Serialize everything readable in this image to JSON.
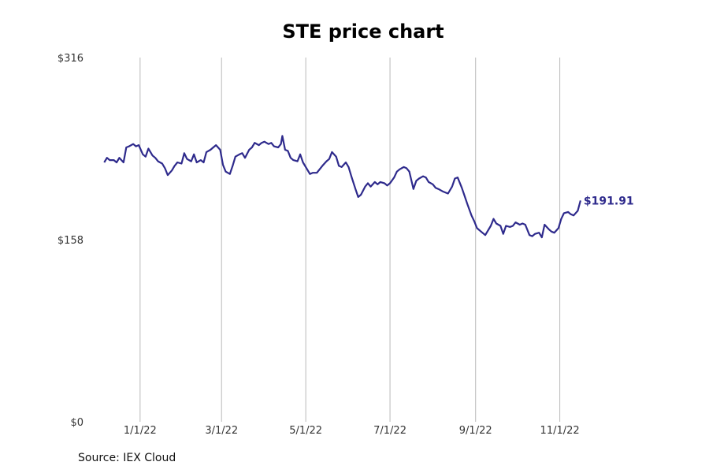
{
  "title": "STE price chart",
  "source": "Source: IEX Cloud",
  "chart_data": {
    "type": "line",
    "title": "STE price chart",
    "xlabel": "",
    "ylabel": "",
    "ylim": [
      0,
      316
    ],
    "y_ticks": [
      {
        "value": 0,
        "label": "$0"
      },
      {
        "value": 158,
        "label": "$158"
      },
      {
        "value": 316,
        "label": "$316"
      }
    ],
    "x_ticks": [
      {
        "date": "2022-01-01",
        "label": "1/1/22"
      },
      {
        "date": "2022-03-01",
        "label": "3/1/22"
      },
      {
        "date": "2022-05-01",
        "label": "5/1/22"
      },
      {
        "date": "2022-07-01",
        "label": "7/1/22"
      },
      {
        "date": "2022-09-01",
        "label": "9/1/22"
      },
      {
        "date": "2022-11-01",
        "label": "11/1/22"
      }
    ],
    "x_range": [
      "2021-11-29",
      "2022-12-22"
    ],
    "grid": "vertical",
    "line_color": "#2e2a8c",
    "last_value_label": "$191.91",
    "series": [
      {
        "points": [
          [
            "2021-12-06",
            225
          ],
          [
            "2021-12-08",
            229
          ],
          [
            "2021-12-10",
            227
          ],
          [
            "2021-12-13",
            227
          ],
          [
            "2021-12-15",
            225
          ],
          [
            "2021-12-17",
            229
          ],
          [
            "2021-12-20",
            225
          ],
          [
            "2021-12-22",
            238
          ],
          [
            "2021-12-24",
            239
          ],
          [
            "2021-12-27",
            241
          ],
          [
            "2021-12-29",
            239
          ],
          [
            "2021-12-31",
            240
          ],
          [
            "2022-01-03",
            232
          ],
          [
            "2022-01-05",
            230
          ],
          [
            "2022-01-07",
            237
          ],
          [
            "2022-01-10",
            231
          ],
          [
            "2022-01-12",
            229
          ],
          [
            "2022-01-14",
            226
          ],
          [
            "2022-01-17",
            224
          ],
          [
            "2022-01-19",
            220
          ],
          [
            "2022-01-21",
            214
          ],
          [
            "2022-01-24",
            218
          ],
          [
            "2022-01-26",
            222
          ],
          [
            "2022-01-28",
            225
          ],
          [
            "2022-01-31",
            224
          ],
          [
            "2022-02-02",
            233
          ],
          [
            "2022-02-04",
            228
          ],
          [
            "2022-02-07",
            226
          ],
          [
            "2022-02-09",
            232
          ],
          [
            "2022-02-11",
            225
          ],
          [
            "2022-02-14",
            227
          ],
          [
            "2022-02-16",
            225
          ],
          [
            "2022-02-18",
            234
          ],
          [
            "2022-02-21",
            236
          ],
          [
            "2022-02-23",
            238
          ],
          [
            "2022-02-25",
            240
          ],
          [
            "2022-02-28",
            236
          ],
          [
            "2022-03-02",
            223
          ],
          [
            "2022-03-04",
            217
          ],
          [
            "2022-03-07",
            215
          ],
          [
            "2022-03-09",
            222
          ],
          [
            "2022-03-11",
            230
          ],
          [
            "2022-03-14",
            232
          ],
          [
            "2022-03-16",
            233
          ],
          [
            "2022-03-18",
            229
          ],
          [
            "2022-03-21",
            236
          ],
          [
            "2022-03-23",
            238
          ],
          [
            "2022-03-25",
            242
          ],
          [
            "2022-03-28",
            240
          ],
          [
            "2022-03-30",
            242
          ],
          [
            "2022-04-01",
            243
          ],
          [
            "2022-04-04",
            241
          ],
          [
            "2022-04-06",
            242
          ],
          [
            "2022-04-08",
            239
          ],
          [
            "2022-04-11",
            238
          ],
          [
            "2022-04-13",
            241
          ],
          [
            "2022-04-14",
            248
          ],
          [
            "2022-04-16",
            236
          ],
          [
            "2022-04-18",
            235
          ],
          [
            "2022-04-20",
            229
          ],
          [
            "2022-04-22",
            227
          ],
          [
            "2022-04-25",
            226
          ],
          [
            "2022-04-27",
            232
          ],
          [
            "2022-04-29",
            225
          ],
          [
            "2022-05-02",
            219
          ],
          [
            "2022-05-04",
            215
          ],
          [
            "2022-05-06",
            216
          ],
          [
            "2022-05-09",
            216
          ],
          [
            "2022-05-11",
            219
          ],
          [
            "2022-05-13",
            222
          ],
          [
            "2022-05-16",
            226
          ],
          [
            "2022-05-18",
            228
          ],
          [
            "2022-05-20",
            234
          ],
          [
            "2022-05-23",
            230
          ],
          [
            "2022-05-25",
            222
          ],
          [
            "2022-05-27",
            221
          ],
          [
            "2022-05-30",
            225
          ],
          [
            "2022-06-01",
            221
          ],
          [
            "2022-06-03",
            213
          ],
          [
            "2022-06-06",
            202
          ],
          [
            "2022-06-08",
            195
          ],
          [
            "2022-06-10",
            197
          ],
          [
            "2022-06-13",
            204
          ],
          [
            "2022-06-15",
            207
          ],
          [
            "2022-06-17",
            204
          ],
          [
            "2022-06-20",
            208
          ],
          [
            "2022-06-22",
            206
          ],
          [
            "2022-06-24",
            208
          ],
          [
            "2022-06-27",
            207
          ],
          [
            "2022-06-29",
            205
          ],
          [
            "2022-07-01",
            207
          ],
          [
            "2022-07-04",
            212
          ],
          [
            "2022-07-06",
            217
          ],
          [
            "2022-07-08",
            219
          ],
          [
            "2022-07-11",
            221
          ],
          [
            "2022-07-13",
            220
          ],
          [
            "2022-07-15",
            217
          ],
          [
            "2022-07-18",
            202
          ],
          [
            "2022-07-20",
            209
          ],
          [
            "2022-07-22",
            211
          ],
          [
            "2022-07-25",
            213
          ],
          [
            "2022-07-27",
            212
          ],
          [
            "2022-07-29",
            208
          ],
          [
            "2022-08-01",
            206
          ],
          [
            "2022-08-03",
            203
          ],
          [
            "2022-08-05",
            202
          ],
          [
            "2022-08-08",
            200
          ],
          [
            "2022-08-10",
            199
          ],
          [
            "2022-08-12",
            198
          ],
          [
            "2022-08-15",
            204
          ],
          [
            "2022-08-17",
            211
          ],
          [
            "2022-08-19",
            212
          ],
          [
            "2022-08-22",
            203
          ],
          [
            "2022-08-24",
            196
          ],
          [
            "2022-08-26",
            189
          ],
          [
            "2022-08-29",
            179
          ],
          [
            "2022-08-31",
            174
          ],
          [
            "2022-09-02",
            168
          ],
          [
            "2022-09-05",
            165
          ],
          [
            "2022-09-08",
            162
          ],
          [
            "2022-09-12",
            170
          ],
          [
            "2022-09-14",
            176
          ],
          [
            "2022-09-16",
            172
          ],
          [
            "2022-09-19",
            170
          ],
          [
            "2022-09-21",
            163
          ],
          [
            "2022-09-23",
            170
          ],
          [
            "2022-09-26",
            169
          ],
          [
            "2022-09-28",
            170
          ],
          [
            "2022-09-30",
            173
          ],
          [
            "2022-10-03",
            171
          ],
          [
            "2022-10-05",
            172
          ],
          [
            "2022-10-07",
            171
          ],
          [
            "2022-10-10",
            162
          ],
          [
            "2022-10-12",
            161
          ],
          [
            "2022-10-14",
            163
          ],
          [
            "2022-10-17",
            164
          ],
          [
            "2022-10-19",
            160
          ],
          [
            "2022-10-21",
            171
          ],
          [
            "2022-10-24",
            167
          ],
          [
            "2022-10-26",
            165
          ],
          [
            "2022-10-28",
            164
          ],
          [
            "2022-10-31",
            168
          ],
          [
            "2022-11-02",
            176
          ],
          [
            "2022-11-04",
            181
          ],
          [
            "2022-11-07",
            182
          ],
          [
            "2022-11-09",
            180
          ],
          [
            "2022-11-11",
            179
          ],
          [
            "2022-11-14",
            183
          ],
          [
            "2022-11-16",
            191.91
          ]
        ]
      }
    ]
  }
}
